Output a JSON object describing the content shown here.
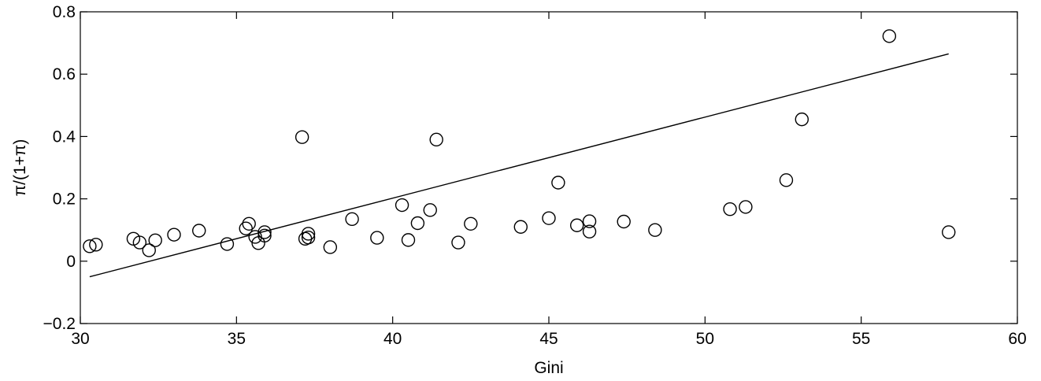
{
  "chart_data": {
    "type": "scatter",
    "xlabel": "Gini",
    "ylabel": "π/(1+π)",
    "xlim": [
      30,
      60
    ],
    "ylim": [
      -0.2,
      0.8
    ],
    "xticks": [
      30,
      35,
      40,
      45,
      50,
      55,
      60
    ],
    "xtick_labels": [
      "30",
      "35",
      "40",
      "45",
      "50",
      "55",
      "60"
    ],
    "yticks": [
      -0.2,
      0,
      0.2,
      0.4,
      0.6,
      0.8
    ],
    "ytick_labels": [
      "−0.2",
      "0",
      "0.2",
      "0.4",
      "0.6",
      "0.8"
    ],
    "grid": false,
    "marker": "open-circle",
    "points": [
      {
        "x": 30.3,
        "y": 0.048
      },
      {
        "x": 30.5,
        "y": 0.053
      },
      {
        "x": 31.7,
        "y": 0.072
      },
      {
        "x": 31.9,
        "y": 0.06
      },
      {
        "x": 32.2,
        "y": 0.035
      },
      {
        "x": 32.4,
        "y": 0.067
      },
      {
        "x": 33.0,
        "y": 0.085
      },
      {
        "x": 33.8,
        "y": 0.098
      },
      {
        "x": 34.7,
        "y": 0.055
      },
      {
        "x": 35.3,
        "y": 0.105
      },
      {
        "x": 35.4,
        "y": 0.12
      },
      {
        "x": 35.6,
        "y": 0.078
      },
      {
        "x": 35.7,
        "y": 0.058
      },
      {
        "x": 35.9,
        "y": 0.093
      },
      {
        "x": 35.9,
        "y": 0.082
      },
      {
        "x": 37.1,
        "y": 0.398
      },
      {
        "x": 37.2,
        "y": 0.072
      },
      {
        "x": 37.3,
        "y": 0.088
      },
      {
        "x": 37.3,
        "y": 0.076
      },
      {
        "x": 38.0,
        "y": 0.045
      },
      {
        "x": 38.7,
        "y": 0.135
      },
      {
        "x": 39.5,
        "y": 0.075
      },
      {
        "x": 40.3,
        "y": 0.18
      },
      {
        "x": 40.5,
        "y": 0.068
      },
      {
        "x": 40.8,
        "y": 0.122
      },
      {
        "x": 41.2,
        "y": 0.164
      },
      {
        "x": 41.4,
        "y": 0.39
      },
      {
        "x": 42.1,
        "y": 0.06
      },
      {
        "x": 42.5,
        "y": 0.12
      },
      {
        "x": 44.1,
        "y": 0.11
      },
      {
        "x": 45.0,
        "y": 0.138
      },
      {
        "x": 45.3,
        "y": 0.252
      },
      {
        "x": 45.9,
        "y": 0.115
      },
      {
        "x": 46.3,
        "y": 0.128
      },
      {
        "x": 46.3,
        "y": 0.095
      },
      {
        "x": 47.4,
        "y": 0.127
      },
      {
        "x": 48.4,
        "y": 0.1
      },
      {
        "x": 50.8,
        "y": 0.167
      },
      {
        "x": 51.3,
        "y": 0.174
      },
      {
        "x": 52.6,
        "y": 0.26
      },
      {
        "x": 53.1,
        "y": 0.455
      },
      {
        "x": 55.9,
        "y": 0.722
      },
      {
        "x": 57.8,
        "y": 0.093
      }
    ],
    "fit_line": {
      "x": [
        30.3,
        57.8
      ],
      "y": [
        -0.05,
        0.665
      ]
    }
  }
}
